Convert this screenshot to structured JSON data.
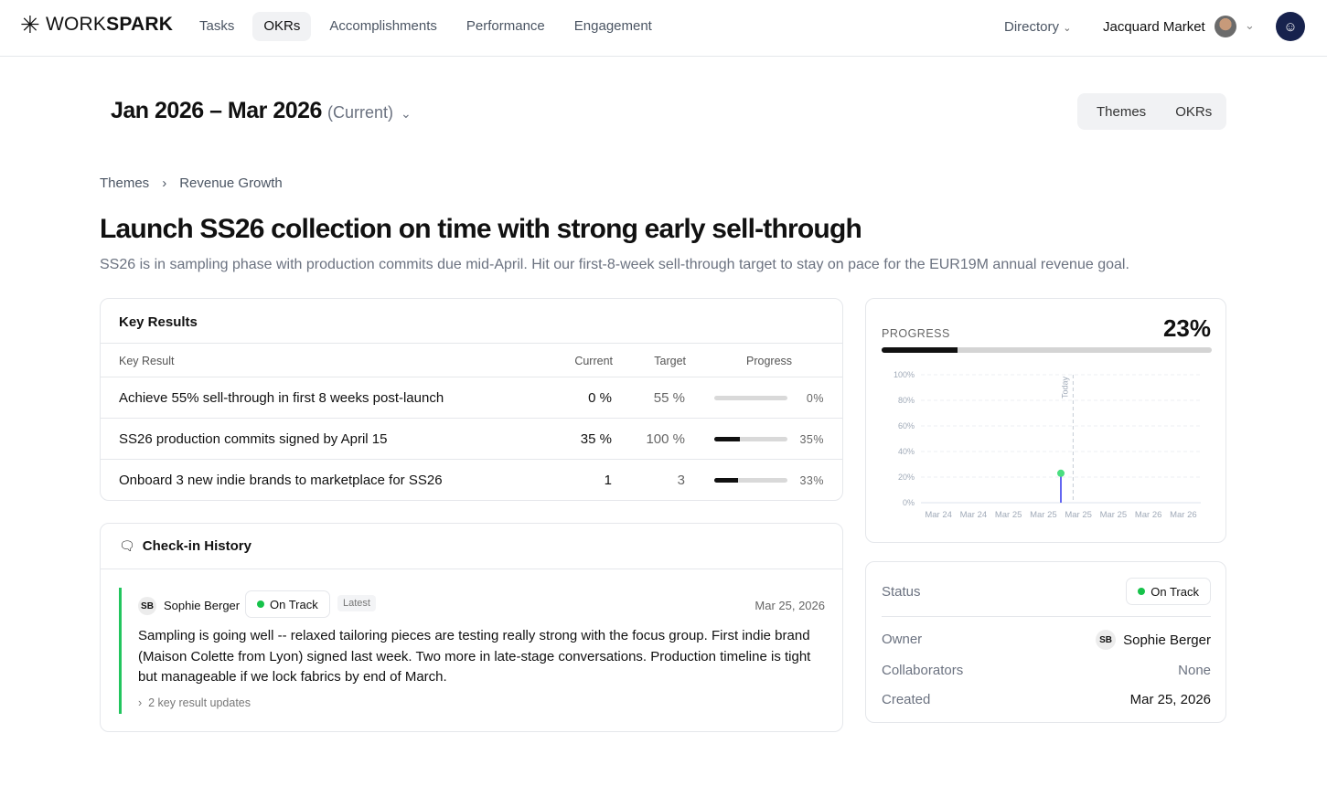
{
  "nav": {
    "brand_light": "WORK",
    "brand_bold": "SPARK",
    "items": [
      {
        "label": "Tasks"
      },
      {
        "label": "OKRs",
        "active": true
      },
      {
        "label": "Accomplishments"
      },
      {
        "label": "Performance"
      },
      {
        "label": "Engagement"
      }
    ],
    "directory": "Directory",
    "user": "Jacquard Market"
  },
  "period": {
    "title": "Jan 2026 – Mar 2026",
    "current": "(Current)"
  },
  "view_toggle": [
    "Themes",
    "OKRs"
  ],
  "breadcrumb": [
    "Themes",
    "Revenue Growth"
  ],
  "objective": {
    "title": "Launch SS26 collection on time with strong early sell-through",
    "description": "SS26 is in sampling phase with production commits due mid-April. Hit our first-8-week sell-through target to stay on pace for the EUR19M annual revenue goal."
  },
  "key_results": {
    "title": "Key Results",
    "headers": {
      "name": "Key Result",
      "current": "Current",
      "target": "Target",
      "progress": "Progress"
    },
    "rows": [
      {
        "name": "Achieve 55% sell-through in first 8 weeks post-launch",
        "current": "0 %",
        "target": "55 %",
        "progress": 0,
        "progress_label": "0%"
      },
      {
        "name": "SS26 production commits signed by April 15",
        "current": "35 %",
        "target": "100 %",
        "progress": 35,
        "progress_label": "35%"
      },
      {
        "name": "Onboard 3 new indie brands to marketplace for SS26",
        "current": "1",
        "target": "3",
        "progress": 33,
        "progress_label": "33%"
      }
    ]
  },
  "checkins": {
    "title": "Check-in History",
    "entries": [
      {
        "initials": "SB",
        "author": "Sophie Berger",
        "status": "On Track",
        "badge": "Latest",
        "date": "Mar 25, 2026",
        "text": "Sampling is going well -- relaxed tailoring pieces are testing really strong with the focus group. First indie brand (Maison Colette from Lyon) signed last week. Two more in late-stage conversations. Production timeline is tight but manageable if we lock fabrics by end of March.",
        "updates": "2 key result updates"
      }
    ]
  },
  "progress": {
    "label": "PROGRESS",
    "value": 23,
    "value_label": "23%"
  },
  "chart_data": {
    "type": "line",
    "x_ticks": [
      "Mar 24",
      "Mar 24",
      "Mar 25",
      "Mar 25",
      "Mar 25",
      "Mar 25",
      "Mar 26",
      "Mar 26"
    ],
    "y_ticks": [
      "0%",
      "20%",
      "40%",
      "60%",
      "80%",
      "100%"
    ],
    "ylim": [
      0,
      100
    ],
    "grid": true,
    "series": [
      {
        "points": [
          {
            "x": "Mar 25",
            "y": 0
          },
          {
            "x": "Mar 25",
            "y": 23
          }
        ],
        "color": "#6366f1",
        "marker_color": "#4ade80"
      }
    ],
    "annotation": "Today"
  },
  "details": {
    "status_label": "Status",
    "status": "On Track",
    "owner_label": "Owner",
    "owner_initials": "SB",
    "owner": "Sophie Berger",
    "collab_label": "Collaborators",
    "collaborators": "None",
    "created_label": "Created",
    "created": "Mar 25, 2026"
  },
  "colors": {
    "on_track": "#16c24a",
    "accent_dark": "#17224d"
  }
}
